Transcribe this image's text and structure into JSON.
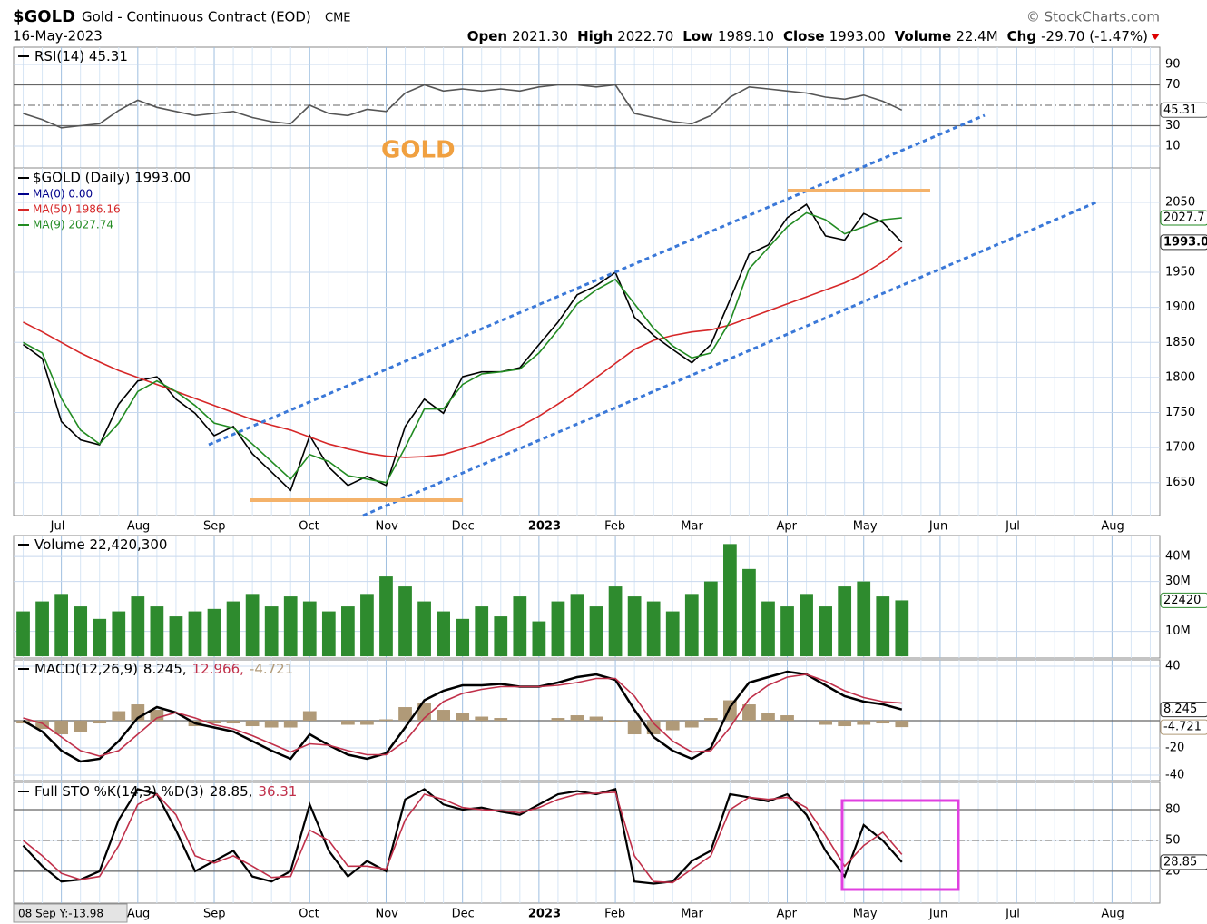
{
  "header": {
    "symbol": "$GOLD",
    "name": "Gold - Continuous Contract (EOD)",
    "exchange": "CME",
    "date": "16-May-2023",
    "source": "© StockCharts.com",
    "quote": [
      {
        "label": "Open",
        "value": "2021.30"
      },
      {
        "label": "High",
        "value": "2022.70"
      },
      {
        "label": "Low",
        "value": "1989.10"
      },
      {
        "label": "Close",
        "value": "1993.00"
      },
      {
        "label": "Volume",
        "value": "22.4M"
      },
      {
        "label": "Chg",
        "value": "-29.70 (-1.47%)"
      }
    ],
    "readout": "08 Sep Y:-13.98"
  },
  "chart_data": [
    {
      "type": "line",
      "annotation": "GOLD",
      "ylim": [
        -11.3,
        106.9
      ],
      "yticks": [
        10,
        30,
        70,
        90
      ],
      "reference_lines": [
        70,
        30
      ],
      "dashed_lines": [
        50
      ],
      "series": [
        {
          "name": "RSI(14) 45.31",
          "color": "#555555",
          "last_label": "45.31",
          "values": [
            42,
            36,
            28,
            30,
            32,
            45,
            55,
            48,
            44,
            40,
            42,
            44,
            38,
            34,
            32,
            50,
            42,
            40,
            46,
            44,
            62,
            70,
            64,
            66,
            64,
            66,
            64,
            68,
            70,
            70,
            68,
            70,
            42,
            38,
            34,
            32,
            40,
            58,
            68,
            66,
            64,
            62,
            58,
            56,
            60,
            54,
            45.31,
            null,
            null,
            null,
            null,
            null,
            null,
            null,
            null,
            null,
            null,
            null,
            null,
            null
          ]
        }
      ]
    },
    {
      "type": "line",
      "categories": [
        null,
        null,
        "Jul",
        null,
        null,
        null,
        "Aug",
        null,
        null,
        null,
        "Sep",
        null,
        null,
        null,
        null,
        "Oct",
        null,
        null,
        null,
        "Nov",
        null,
        null,
        null,
        "Dec",
        null,
        null,
        null,
        "2023",
        null,
        null,
        null,
        "Feb",
        null,
        null,
        null,
        "Mar",
        null,
        null,
        null,
        null,
        "Apr",
        null,
        null,
        null,
        "May",
        null,
        null,
        null,
        "Jun",
        null,
        null,
        null,
        "Jul",
        null,
        null,
        null,
        null,
        "Aug",
        null,
        null
      ],
      "ylim": [
        1603,
        2099
      ],
      "yticks": [
        1650,
        1700,
        1750,
        1800,
        1850,
        1900,
        1950,
        2050
      ],
      "extra_legend": [
        {
          "name": "MA(0) 0.00",
          "color": "#00008b"
        }
      ],
      "series": [
        {
          "name": "$GOLD (Daily) 1993.00",
          "color": "#000000",
          "last_label": "1993.0",
          "values": [
            1847,
            1827,
            1737,
            1711,
            1704,
            1762,
            1795,
            1801,
            1769,
            1749,
            1717,
            1730,
            1691,
            1665,
            1639,
            1717,
            1672,
            1646,
            1659,
            1646,
            1730,
            1769,
            1749,
            1801,
            1808,
            1808,
            1814,
            1847,
            1879,
            1918,
            1931,
            1950,
            1886,
            1860,
            1840,
            1821,
            1847,
            1911,
            1976,
            1989,
            2028,
            2047,
            2002,
            1996,
            2034,
            2021,
            1993,
            null,
            null,
            null,
            null,
            null,
            null,
            null,
            null,
            null,
            null,
            null,
            null,
            null
          ]
        },
        {
          "name": "MA(50) 1986.16",
          "color": "#d62728",
          "values": [
            1879,
            1865,
            1850,
            1835,
            1822,
            1810,
            1800,
            1790,
            1780,
            1770,
            1760,
            1750,
            1740,
            1732,
            1725,
            1715,
            1705,
            1698,
            1692,
            1688,
            1686,
            1687,
            1690,
            1698,
            1707,
            1718,
            1730,
            1745,
            1762,
            1780,
            1800,
            1820,
            1840,
            1853,
            1860,
            1865,
            1868,
            1875,
            1885,
            1895,
            1905,
            1915,
            1925,
            1935,
            1948,
            1965,
            1986.16,
            null,
            null,
            null,
            null,
            null,
            null,
            null,
            null,
            null,
            null,
            null,
            null,
            null
          ]
        },
        {
          "name": "MA(9) 2027.74",
          "color": "#228b22",
          "last_label": "2027.7",
          "values": [
            1850,
            1835,
            1770,
            1725,
            1705,
            1735,
            1780,
            1795,
            1780,
            1760,
            1735,
            1728,
            1705,
            1680,
            1655,
            1690,
            1680,
            1660,
            1655,
            1650,
            1700,
            1755,
            1755,
            1790,
            1805,
            1808,
            1812,
            1835,
            1868,
            1905,
            1925,
            1940,
            1905,
            1870,
            1845,
            1828,
            1835,
            1880,
            1955,
            1985,
            2015,
            2035,
            2025,
            2005,
            2015,
            2025,
            2027.74,
            null,
            null,
            null,
            null,
            null,
            null,
            null,
            null,
            null,
            null,
            null,
            null,
            null
          ]
        }
      ]
    },
    {
      "type": "bar",
      "ylim": [
        -0.7,
        48.4
      ],
      "yticks": [
        {
          "value": 10,
          "label": "10M"
        },
        {
          "value": 30,
          "label": "30M"
        },
        {
          "value": 40,
          "label": "40M"
        }
      ],
      "series": [
        {
          "name": "Volume 22,420,300",
          "color": "#2e8b2e",
          "last_label": "22420",
          "values": [
            18,
            22,
            25,
            20,
            15,
            18,
            24,
            20,
            16,
            18,
            19,
            22,
            25,
            20,
            24,
            22,
            18,
            20,
            25,
            32,
            28,
            22,
            18,
            15,
            20,
            16,
            24,
            14,
            22,
            25,
            20,
            28,
            24,
            22,
            18,
            25,
            30,
            45,
            35,
            22,
            20,
            25,
            20,
            28,
            30,
            24,
            22.42,
            null,
            null,
            null,
            null,
            null,
            null,
            null,
            null,
            null,
            null,
            null,
            null,
            null
          ]
        }
      ]
    },
    {
      "type": "line",
      "title": "MACD(12,26,9)",
      "ylim": [
        -44,
        44.7
      ],
      "yticks": [
        40,
        -20,
        -40
      ],
      "reference_lines": [
        0
      ],
      "series": [
        {
          "name": "8.245,",
          "color": "#000000",
          "width": 2.5,
          "last_label": "8.245",
          "values": [
            0,
            -8,
            -22,
            -30,
            -28,
            -15,
            2,
            10,
            6,
            -2,
            -5,
            -8,
            -15,
            -22,
            -28,
            -10,
            -18,
            -25,
            -28,
            -24,
            -5,
            15,
            22,
            26,
            26,
            27,
            25,
            25,
            28,
            32,
            34,
            30,
            8,
            -12,
            -22,
            -28,
            -20,
            10,
            28,
            32,
            36,
            34,
            26,
            18,
            14,
            12,
            8.245,
            null,
            null,
            null,
            null,
            null,
            null,
            null,
            null,
            null,
            null,
            null,
            null,
            null
          ]
        },
        {
          "name": "12.966,",
          "color": "#c0304a",
          "values": [
            2,
            -2,
            -12,
            -22,
            -26,
            -22,
            -10,
            2,
            6,
            2,
            -3,
            -6,
            -11,
            -17,
            -23,
            -17,
            -18,
            -22,
            -25,
            -25,
            -15,
            2,
            14,
            20,
            23,
            25,
            25,
            25,
            26,
            28,
            31,
            31,
            18,
            -2,
            -15,
            -23,
            -22,
            -5,
            16,
            26,
            32,
            34,
            29,
            22,
            17,
            14,
            12.966,
            null,
            null,
            null,
            null,
            null,
            null,
            null,
            null,
            null,
            null,
            null,
            null,
            null
          ]
        },
        {
          "name": "-4.721",
          "color": "#b09a78",
          "style": "bar",
          "last_label": "-4.721",
          "values": [
            -2,
            -6,
            -10,
            -8,
            -2,
            7,
            12,
            8,
            0,
            -4,
            -2,
            -2,
            -4,
            -5,
            -5,
            7,
            0,
            -3,
            -3,
            1,
            10,
            13,
            8,
            6,
            3,
            2,
            0,
            0,
            2,
            4,
            3,
            -1,
            -10,
            -10,
            -7,
            -5,
            2,
            15,
            12,
            6,
            4,
            0,
            -3,
            -4,
            -3,
            -2,
            -4.721,
            null,
            null,
            null,
            null,
            null,
            null,
            null,
            null,
            null,
            null,
            null,
            null,
            null
          ]
        }
      ]
    },
    {
      "type": "line",
      "title": "Full STO %K(14,3) %D(3)",
      "categories": [
        null,
        null,
        "Jul",
        null,
        null,
        null,
        "Aug",
        null,
        null,
        null,
        "Sep",
        null,
        null,
        null,
        null,
        "Oct",
        null,
        null,
        null,
        "Nov",
        null,
        null,
        null,
        "Dec",
        null,
        null,
        null,
        "2023",
        null,
        null,
        null,
        "Feb",
        null,
        null,
        null,
        "Mar",
        null,
        null,
        null,
        null,
        "Apr",
        null,
        null,
        null,
        "May",
        null,
        null,
        null,
        "Jun",
        null,
        null,
        null,
        "Jul",
        null,
        null,
        null,
        null,
        "Aug",
        null,
        null
      ],
      "ylim": [
        -11,
        106.5
      ],
      "yticks": [
        20,
        50,
        80
      ],
      "reference_lines": [
        80,
        20
      ],
      "dashed_lines": [
        50
      ],
      "series": [
        {
          "name": "28.85,",
          "color": "#000000",
          "width": 2.2,
          "last_label": "28.85",
          "values": [
            45,
            25,
            10,
            12,
            20,
            70,
            100,
            95,
            60,
            20,
            30,
            40,
            15,
            10,
            20,
            85,
            40,
            15,
            30,
            20,
            90,
            100,
            85,
            80,
            82,
            78,
            75,
            85,
            95,
            98,
            95,
            100,
            10,
            8,
            10,
            30,
            40,
            95,
            92,
            88,
            95,
            75,
            40,
            15,
            65,
            50,
            28.85,
            null,
            null,
            null,
            null,
            null,
            null,
            null,
            null,
            null,
            null,
            null,
            null,
            null
          ]
        },
        {
          "name": "36.31",
          "color": "#c0304a",
          "values": [
            50,
            35,
            18,
            12,
            15,
            45,
            85,
            95,
            75,
            35,
            28,
            35,
            25,
            14,
            15,
            60,
            50,
            25,
            25,
            22,
            70,
            95,
            90,
            82,
            80,
            79,
            77,
            82,
            90,
            95,
            96,
            97,
            35,
            10,
            9,
            22,
            35,
            80,
            92,
            90,
            92,
            82,
            55,
            25,
            45,
            58,
            36.31,
            null,
            null,
            null,
            null,
            null,
            null,
            null,
            null,
            null,
            null,
            null,
            null,
            null
          ]
        }
      ]
    }
  ]
}
